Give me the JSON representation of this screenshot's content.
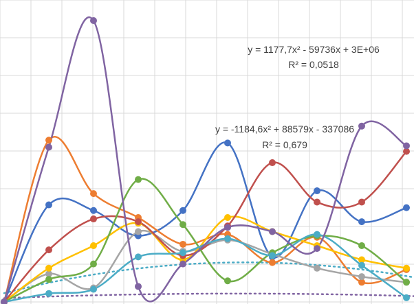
{
  "chart_data": {
    "type": "line",
    "smooth": true,
    "markers": true,
    "grid": true,
    "legend": "none",
    "x": [
      0,
      1,
      2,
      3,
      4,
      5,
      6,
      7,
      8,
      9
    ],
    "series": [
      {
        "color": "#4472c4",
        "values": [
          0,
          0.345,
          0.325,
          0.235,
          0.325,
          0.565,
          0.16,
          0.395,
          0.285,
          0.335
        ]
      },
      {
        "color": "#ed7d31",
        "values": [
          0,
          0.575,
          0.385,
          0.3,
          0.205,
          0.24,
          0.14,
          0.23,
          0.07,
          0.115
        ]
      },
      {
        "color": "#a5a5a5",
        "values": [
          0,
          0.1,
          0.05,
          0.25,
          0.18,
          0.22,
          0.17,
          0.12,
          0.09,
          0.07
        ]
      },
      {
        "color": "#ffc000",
        "values": [
          0,
          0.12,
          0.2,
          0.28,
          0.15,
          0.3,
          0.25,
          0.2,
          0.15,
          0.12
        ]
      },
      {
        "color": "#c0504d",
        "values": [
          0,
          0.185,
          0.295,
          0.285,
          0.165,
          0.27,
          0.495,
          0.355,
          0.355,
          0.535
        ]
      },
      {
        "color": "#70ad47",
        "values": [
          0,
          0.08,
          0.135,
          0.435,
          0.275,
          0.075,
          0.175,
          0.235,
          0.2,
          0.07
        ]
      },
      {
        "color": "#4bacc6",
        "values": [
          0,
          0.03,
          0.045,
          0.16,
          0.175,
          0.225,
          0.165,
          0.24,
          0.13,
          0.015
        ]
      },
      {
        "color": "#8064a2",
        "values": [
          0,
          0.55,
          1.0,
          0.055,
          0.135,
          0.265,
          0.25,
          0.19,
          0.625,
          0.555
        ]
      }
    ],
    "trendlines": [
      {
        "series_color": "#8064a2",
        "type": "polynomial-2",
        "coefficients": [
          -0.00059,
          0.00617,
          0.01355
        ],
        "equation": "y = 1177,7x² - 59736x + 3E+06",
        "r_squared": "R² = 0,0518"
      },
      {
        "series_color": "#4bacc6",
        "type": "polynomial-2",
        "coefficients": [
          -0.00375,
          0.0405,
          0.03125
        ],
        "equation": "y = -1184,6x² + 88579x - 337086",
        "r_squared": "R² = 0,679"
      }
    ]
  }
}
